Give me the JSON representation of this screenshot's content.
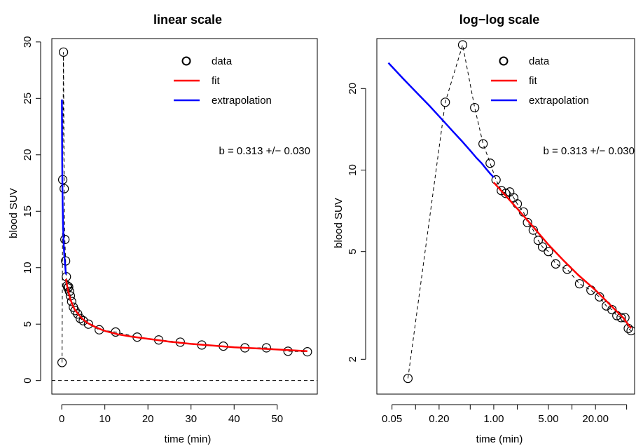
{
  "chart_data": [
    {
      "type": "scatter",
      "title": "linear scale",
      "xlabel": "time (min)",
      "ylabel": "blood SUV",
      "xlim": [
        -2.3,
        59.3
      ],
      "ylim": [
        -1.2,
        30.3
      ],
      "x_ticks": [
        0,
        10,
        20,
        30,
        40,
        50
      ],
      "x_tick_labels": [
        "0",
        "10",
        "20",
        "30",
        "40",
        "50"
      ],
      "y_ticks": [
        0,
        5,
        10,
        15,
        20,
        25,
        30
      ],
      "y_tick_labels": [
        "0",
        "5",
        "10",
        "15",
        "20",
        "25",
        "30"
      ],
      "scale": "linear",
      "hline": 0,
      "legend": {
        "position": "top-right",
        "entries": [
          {
            "label": "data",
            "symbol": "circle",
            "color": "#000000"
          },
          {
            "label": "fit",
            "symbol": "line",
            "color": "#ff0000"
          },
          {
            "label": "extrapolation",
            "symbol": "line",
            "color": "#0000ff"
          }
        ]
      },
      "annotation": "b = 0.313 +/− 0.030",
      "series": [
        {
          "name": "data",
          "style": "points-dashed",
          "color": "#000000",
          "x": [
            0.07,
            0.23,
            0.4,
            0.57,
            0.73,
            0.9,
            1.07,
            1.25,
            1.42,
            1.6,
            1.8,
            2.0,
            2.3,
            2.7,
            3.1,
            3.7,
            4.3,
            5.0,
            6.2,
            8.7,
            12.5,
            17.5,
            22.5,
            27.5,
            32.5,
            37.5,
            42.5,
            47.5,
            52.5,
            57.0
          ],
          "y": [
            1.6,
            17.8,
            29.1,
            17.0,
            12.5,
            10.6,
            9.2,
            8.4,
            8.2,
            8.3,
            7.9,
            7.5,
            7.0,
            6.5,
            6.2,
            5.9,
            5.5,
            5.3,
            5.0,
            4.5,
            4.3,
            3.85,
            3.6,
            3.4,
            3.15,
            3.05,
            2.9,
            2.9,
            2.6,
            2.55
          ]
        },
        {
          "name": "fit",
          "style": "line",
          "color": "#ff0000",
          "x": [
            1.0,
            1.2,
            1.5,
            2,
            2.5,
            3,
            4,
            5,
            6,
            8,
            10,
            13,
            16,
            20,
            25,
            30,
            35,
            40,
            45,
            50,
            57
          ],
          "y": [
            9.0,
            8.5,
            7.9,
            7.2,
            6.7,
            6.3,
            5.8,
            5.4,
            5.1,
            4.7,
            4.4,
            4.1,
            3.9,
            3.7,
            3.45,
            3.25,
            3.1,
            2.95,
            2.85,
            2.75,
            2.6
          ]
        },
        {
          "name": "extrapolation",
          "style": "line",
          "color": "#0000ff",
          "x": [
            0.045,
            0.07,
            0.1,
            0.15,
            0.2,
            0.3,
            0.4,
            0.5,
            0.6,
            0.7,
            0.8,
            0.9,
            1.0
          ],
          "y": [
            24.9,
            21.7,
            19.5,
            17.3,
            15.8,
            13.9,
            12.7,
            11.8,
            11.1,
            10.6,
            10.1,
            9.7,
            9.4
          ]
        }
      ]
    },
    {
      "type": "scatter",
      "title": "log−log scale",
      "xlabel": "time (min)",
      "ylabel": "blood SUV",
      "xlim": [
        0.032,
        63.2
      ],
      "ylim": [
        1.487,
        30.6
      ],
      "x_ticks": [
        0.05,
        0.1,
        0.2,
        0.5,
        1.0,
        2.0,
        5.0,
        10.0,
        20.0,
        50.0
      ],
      "x_tick_labels": [
        "0.05",
        "",
        "0.20",
        "",
        "1.00",
        "",
        "5.00",
        "",
        "20.00",
        ""
      ],
      "y_ticks": [
        2,
        5,
        10,
        20
      ],
      "y_tick_labels": [
        "2",
        "5",
        "10",
        "20"
      ],
      "scale": "log-log",
      "legend": {
        "position": "top-right",
        "entries": [
          {
            "label": "data",
            "symbol": "circle",
            "color": "#000000"
          },
          {
            "label": "fit",
            "symbol": "line",
            "color": "#ff0000"
          },
          {
            "label": "extrapolation",
            "symbol": "line",
            "color": "#0000ff"
          }
        ]
      },
      "annotation": "b = 0.313 +/− 0.030",
      "series": [
        {
          "name": "data",
          "style": "points-dashed",
          "color": "#000000",
          "x": [
            0.08,
            0.24,
            0.4,
            0.57,
            0.73,
            0.9,
            1.07,
            1.25,
            1.42,
            1.6,
            1.8,
            2.0,
            2.4,
            2.7,
            3.2,
            3.7,
            4.2,
            5.0,
            6.2,
            8.7,
            12.5,
            17.5,
            22.5,
            27.5,
            32.5,
            37.5,
            42.5,
            47.5,
            52.5,
            57.0
          ],
          "y": [
            1.7,
            17.8,
            29.0,
            17.0,
            12.5,
            10.6,
            9.2,
            8.4,
            8.2,
            8.3,
            7.9,
            7.5,
            7.0,
            6.4,
            6.0,
            5.5,
            5.2,
            5.0,
            4.5,
            4.3,
            3.8,
            3.6,
            3.4,
            3.15,
            3.05,
            2.9,
            2.85,
            2.85,
            2.6,
            2.55
          ]
        },
        {
          "name": "fit",
          "style": "line",
          "color": "#ff0000",
          "x": [
            1.0,
            1.5,
            2,
            3,
            5,
            8,
            12,
            20,
            30,
            45,
            57
          ],
          "y": [
            9.0,
            7.9,
            7.2,
            6.3,
            5.3,
            4.6,
            4.1,
            3.6,
            3.2,
            2.85,
            2.6
          ]
        },
        {
          "name": "extrapolation",
          "style": "line",
          "color": "#0000ff",
          "x": [
            0.045,
            0.07,
            0.1,
            0.15,
            0.2,
            0.3,
            0.4,
            0.5,
            0.6,
            0.7,
            0.8,
            0.9,
            1.0
          ],
          "y": [
            24.9,
            21.7,
            19.5,
            17.3,
            15.8,
            13.9,
            12.7,
            11.8,
            11.1,
            10.6,
            10.1,
            9.7,
            9.4
          ]
        }
      ]
    }
  ]
}
